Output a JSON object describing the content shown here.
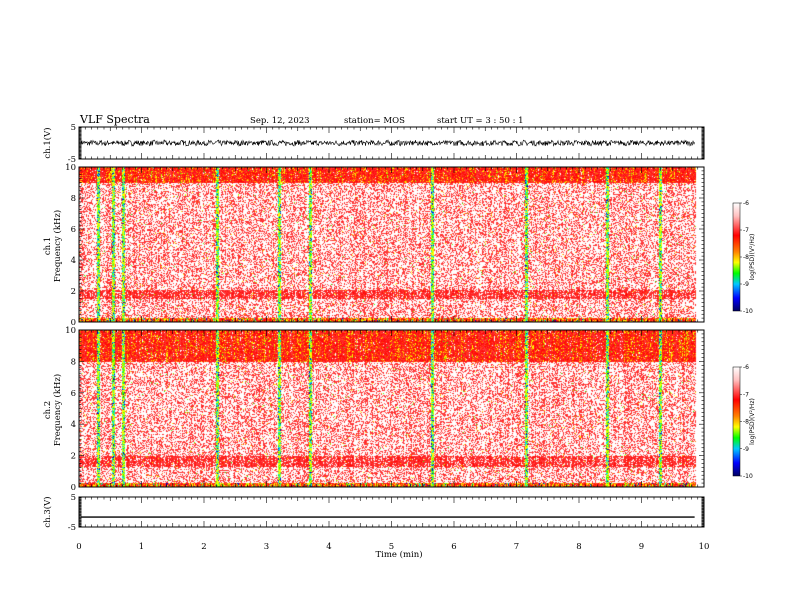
{
  "header": {
    "title": "VLF Spectra",
    "date": "Sep. 12, 2023",
    "station": "station= MOS",
    "start": "start UT =  3 : 50 : 1"
  },
  "chart_data": [
    {
      "type": "line",
      "panel": "ch1-waveform",
      "ylabel": "ch.1(V)",
      "ylim": [
        -5,
        5
      ],
      "yticks": [
        "5",
        "-5"
      ],
      "xlim": [
        0,
        10
      ],
      "trace": "noisy black line near 0 V spanning 0 to 9.85 min",
      "series_level": 0
    },
    {
      "type": "heatmap",
      "panel": "ch1-spectrogram",
      "ylabel": "ch.1 Frequency (kHz)",
      "ylim": [
        0,
        10
      ],
      "yticks": [
        "10",
        "8",
        "6",
        "4",
        "2",
        "0"
      ],
      "xlim": [
        0,
        10
      ],
      "colorbar": {
        "label": "log(PSD)(V²/Hz)",
        "range": [
          -10,
          -6
        ],
        "ticks": [
          "-6",
          "-7",
          "-8",
          "-9",
          "-10"
        ]
      },
      "bands": [
        {
          "from_khz": 9.0,
          "to_khz": 10.0,
          "level": "strong (yellow/green/red)"
        },
        {
          "from_khz": 1.5,
          "to_khz": 2.1,
          "level": "moderate (red)"
        },
        {
          "from_khz": 0.0,
          "to_khz": 0.3,
          "level": "strong (cyan/green)"
        }
      ],
      "impulsive_columns_min": [
        0.3,
        0.55,
        0.7,
        2.2,
        3.2,
        3.7,
        5.65,
        7.15,
        8.45,
        9.3
      ]
    },
    {
      "type": "heatmap",
      "panel": "ch2-spectrogram",
      "ylabel": "ch.2 Frequency (kHz)",
      "ylim": [
        0,
        10
      ],
      "yticks": [
        "10",
        "8",
        "6",
        "4",
        "2",
        "0"
      ],
      "xlim": [
        0,
        10
      ],
      "colorbar": {
        "label": "log(PSD)(V²/Hz)",
        "range": [
          -10,
          -6
        ],
        "ticks": [
          "-6",
          "-7",
          "-8",
          "-9",
          "-10"
        ]
      },
      "bands": [
        {
          "from_khz": 8.0,
          "to_khz": 10.0,
          "level": "strong (red/yellow)"
        },
        {
          "from_khz": 1.3,
          "to_khz": 2.0,
          "level": "moderate (red)"
        },
        {
          "from_khz": 0.0,
          "to_khz": 0.3,
          "level": "strong (cyan/green)"
        }
      ],
      "impulsive_columns_min": [
        0.3,
        0.55,
        0.7,
        2.2,
        3.2,
        3.7,
        5.65,
        7.15,
        8.45,
        9.3
      ]
    },
    {
      "type": "line",
      "panel": "ch3-waveform",
      "ylabel": "ch.3(V)",
      "ylim": [
        -5,
        5
      ],
      "yticks": [
        "5",
        "-5"
      ],
      "xlim": [
        0,
        10
      ],
      "trace": "flat black line",
      "series_level": -1.7
    }
  ],
  "xaxis": {
    "label": "Time (min)",
    "ticks": [
      "0",
      "1",
      "2",
      "3",
      "4",
      "5",
      "6",
      "7",
      "8",
      "9",
      "10"
    ]
  },
  "colors": {
    "scale": [
      "#000080",
      "#0000ff",
      "#00c8ff",
      "#00ff00",
      "#ffff00",
      "#ff0000",
      "#ffffff"
    ]
  }
}
